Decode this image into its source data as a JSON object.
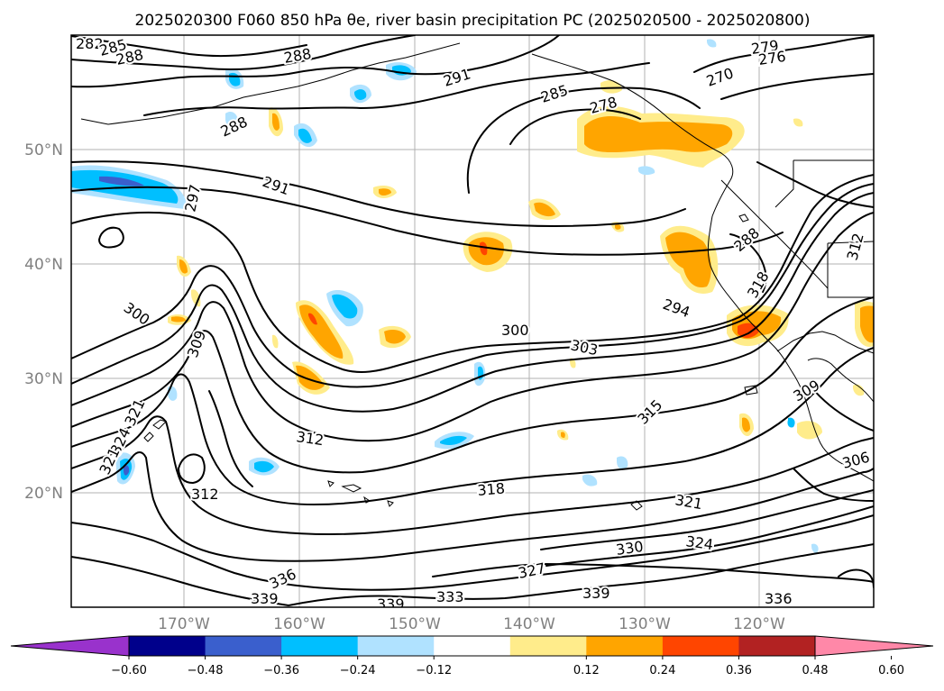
{
  "title": "2025020300 F060 850 hPa θe, river basin precipitation PC (2025020500 - 2025020800)",
  "lat_labels": [
    "50°N",
    "40°N",
    "30°N",
    "20°N"
  ],
  "lon_labels": [
    "170°W",
    "160°W",
    "150°W",
    "140°W",
    "130°W",
    "120°W"
  ],
  "contour_labels": [
    "282",
    "285",
    "288",
    "288",
    "288",
    "291",
    "291",
    "297",
    "300",
    "309",
    "312",
    "312",
    "321",
    "324",
    "327",
    "321",
    "285",
    "279",
    "276",
    "270",
    "278",
    "288",
    "294",
    "300",
    "303",
    "315",
    "318",
    "321",
    "324",
    "330",
    "327",
    "336",
    "339",
    "339",
    "333",
    "339",
    "336",
    "309",
    "306",
    "312",
    "318"
  ],
  "colorbar": {
    "ticks": [
      "−0.60",
      "−0.48",
      "−0.36",
      "−0.24",
      "−0.12",
      "0.12",
      "0.24",
      "0.36",
      "0.48",
      "0.60"
    ],
    "colors": [
      "#9932cc",
      "#00008b",
      "#3a5fcd",
      "#00bfff",
      "#b0e2ff",
      "#ffffff",
      "#ffec8b",
      "#ffa500",
      "#ff4500",
      "#b22222",
      "#ff88a8"
    ]
  }
}
